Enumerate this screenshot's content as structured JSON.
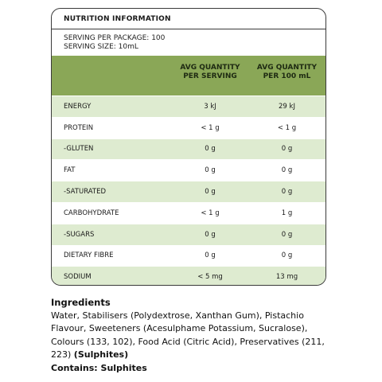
{
  "panel": {
    "title": "NUTRITION INFORMATION",
    "servings_per_package": "SERVING PER PACKAGE: 100",
    "serving_size": "SERVING SIZE: 10mL",
    "col_per_serving_line1": "AVG QUANTITY",
    "col_per_serving_line2": "PER SERVING",
    "col_per_100_line1": "AVG QUANTITY",
    "col_per_100_line2": "PER 100 mL",
    "rows": [
      {
        "label": "ENERGY",
        "per_serving": "3 kJ",
        "per_100": "29 kJ"
      },
      {
        "label": "PROTEIN",
        "per_serving": "< 1 g",
        "per_100": "< 1 g"
      },
      {
        "label": "-GLUTEN",
        "per_serving": "0 g",
        "per_100": "0 g"
      },
      {
        "label": "FAT",
        "per_serving": "0 g",
        "per_100": "0 g"
      },
      {
        "label": "-SATURATED",
        "per_serving": "0 g",
        "per_100": "0 g"
      },
      {
        "label": "CARBOHYDRATE",
        "per_serving": "< 1 g",
        "per_100": "1 g"
      },
      {
        "label": "-SUGARS",
        "per_serving": "0 g",
        "per_100": "0 g"
      },
      {
        "label": "DIETARY FIBRE",
        "per_serving": "0 g",
        "per_100": "0 g"
      },
      {
        "label": "SODIUM",
        "per_serving": "< 5 mg",
        "per_100": "13 mg"
      }
    ]
  },
  "ingredients": {
    "heading": "Ingredients",
    "text": "Water, Stabilisers (Polydextrose, Xanthan Gum), Pistachio Flavour, Sweeteners (Acesulphame Potassium, Sucralose), Colours (133, 102), Food Acid (Citric Acid), Preservatives (211, 223)",
    "allergen_inline": "(Sulphites)",
    "contains": "Contains: Sulphites"
  },
  "colors": {
    "header_green": "#8aa757",
    "alt_row_green": "#deebd0",
    "border": "#3a3a3a"
  }
}
